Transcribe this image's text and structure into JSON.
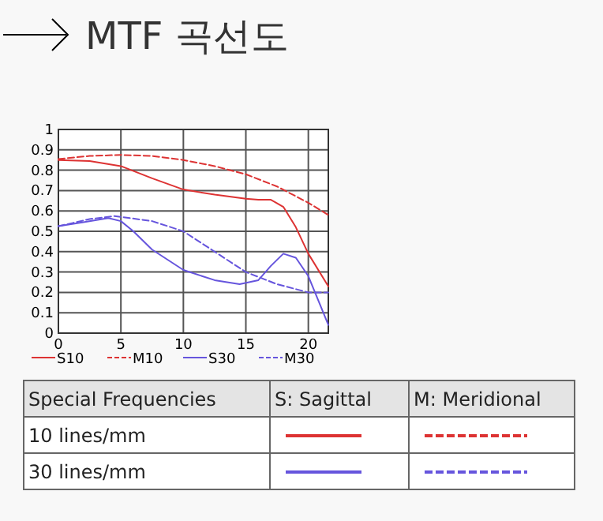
{
  "chart_data": {
    "type": "line",
    "title": "MTF 곡선도",
    "xlim": [
      0,
      21.6
    ],
    "ylim": [
      0,
      1
    ],
    "xticks": [
      0,
      5,
      10,
      15,
      20
    ],
    "yticks": [
      0,
      0.1,
      0.2,
      0.3,
      0.4,
      0.5,
      0.6,
      0.7,
      0.8,
      0.9,
      1
    ],
    "grid": true,
    "legend": "bottom",
    "marker": "none",
    "series": [
      {
        "name": "S10",
        "color": "#dd3333",
        "line_style": "solid",
        "x": [
          0,
          2.5,
          5,
          7.5,
          10,
          12.5,
          15,
          16,
          17,
          18,
          19,
          20,
          21.6
        ],
        "values": [
          0.85,
          0.845,
          0.82,
          0.76,
          0.705,
          0.68,
          0.66,
          0.655,
          0.655,
          0.62,
          0.52,
          0.39,
          0.23
        ]
      },
      {
        "name": "M10",
        "color": "#dd3333",
        "line_style": "dashed",
        "x": [
          0,
          2.5,
          5,
          7.5,
          10,
          12.5,
          15,
          17.5,
          20,
          21.6
        ],
        "values": [
          0.855,
          0.87,
          0.875,
          0.87,
          0.85,
          0.82,
          0.78,
          0.72,
          0.64,
          0.58
        ]
      },
      {
        "name": "S30",
        "color": "#6655dd",
        "line_style": "solid",
        "x": [
          0,
          2,
          4,
          5,
          6,
          7.5,
          10,
          12.5,
          14.5,
          16,
          17,
          18,
          19,
          20,
          21,
          21.6
        ],
        "values": [
          0.525,
          0.545,
          0.565,
          0.55,
          0.5,
          0.41,
          0.31,
          0.26,
          0.24,
          0.26,
          0.33,
          0.39,
          0.37,
          0.28,
          0.13,
          0.04
        ]
      },
      {
        "name": "M30",
        "color": "#6655dd",
        "line_style": "dashed",
        "x": [
          0,
          2.5,
          4.5,
          7.5,
          10,
          12.5,
          15,
          17.5,
          20,
          21.6
        ],
        "values": [
          0.525,
          0.56,
          0.575,
          0.55,
          0.5,
          0.4,
          0.3,
          0.24,
          0.2,
          0.2
        ]
      }
    ],
    "annotations": [
      "Special Frequencies",
      "S: Sagittal",
      "M: Meridional",
      "10 lines/mm",
      "30 lines/mm"
    ]
  }
}
